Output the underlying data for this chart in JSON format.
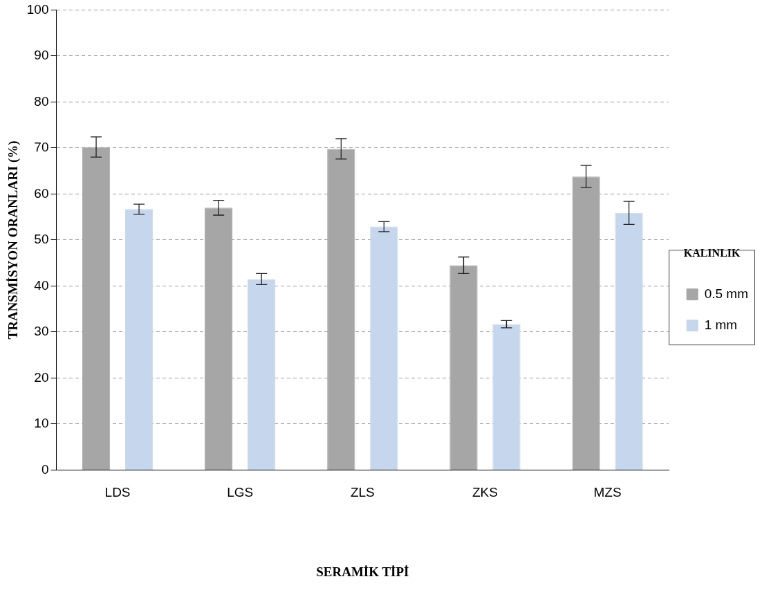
{
  "chart_data": {
    "type": "bar",
    "xlabel": "SERAMİK TİPİ",
    "ylabel": "TRANSMİSYON ORANLARI (%)",
    "legend_title": "KALINLIK",
    "categories": [
      "LDS",
      "LGS",
      "ZLS",
      "ZKS",
      "MZS"
    ],
    "series": [
      {
        "name": "0.5 mm",
        "color": "#a6a6a6",
        "values": [
          70.2,
          57.0,
          69.8,
          44.5,
          63.8
        ],
        "errors": [
          2.2,
          1.6,
          2.2,
          1.8,
          2.4
        ]
      },
      {
        "name": "1 mm",
        "color": "#c6d6ec",
        "values": [
          56.7,
          41.5,
          52.9,
          31.7,
          55.9
        ],
        "errors": [
          1.1,
          1.2,
          1.1,
          0.8,
          2.5
        ]
      }
    ],
    "ylim": [
      0,
      100
    ],
    "yticks": [
      0,
      10,
      20,
      30,
      40,
      50,
      60,
      70,
      80,
      90,
      100
    ],
    "grid": "y",
    "legend": "right"
  }
}
